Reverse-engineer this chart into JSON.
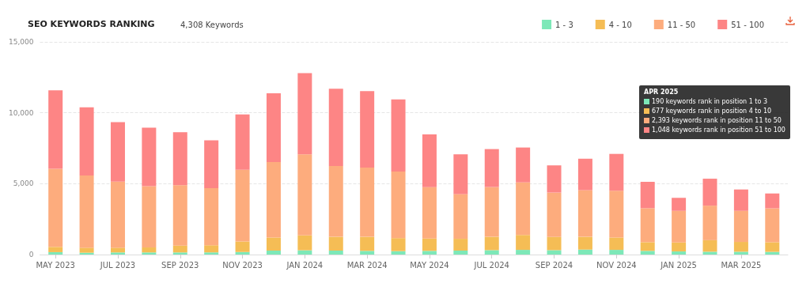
{
  "chart_data": {
    "type": "bar",
    "stacked": true,
    "title": "SEO KEYWORDS RANKING",
    "subtitle": "4,308 Keywords",
    "categories": [
      "MAY 2023",
      null,
      "JUL 2023",
      null,
      "SEP 2023",
      null,
      "NOV 2023",
      null,
      "JAN 2024",
      null,
      "MAR 2024",
      null,
      "MAY 2024",
      null,
      "JUL 2024",
      null,
      "SEP 2024",
      null,
      "NOV 2024",
      null,
      "JAN 2025",
      null,
      "MAR 2025",
      null
    ],
    "series": [
      {
        "name": "1 - 3",
        "color": "#7de8b8",
        "values": [
          170,
          130,
          150,
          150,
          150,
          150,
          180,
          280,
          300,
          280,
          260,
          240,
          260,
          280,
          310,
          330,
          310,
          350,
          330,
          260,
          220,
          200,
          200,
          190
        ]
      },
      {
        "name": "4 - 10",
        "color": "#f5bd55",
        "values": [
          370,
          350,
          330,
          350,
          480,
          500,
          740,
          920,
          1050,
          970,
          990,
          920,
          870,
          830,
          940,
          1050,
          930,
          900,
          870,
          610,
          630,
          810,
          690,
          677
        ]
      },
      {
        "name": "11 - 50",
        "color": "#fdac7d",
        "values": [
          5510,
          5090,
          4670,
          4330,
          4260,
          4040,
          5060,
          5330,
          5720,
          5000,
          4890,
          4690,
          3630,
          3150,
          3510,
          3710,
          3130,
          3290,
          3300,
          2400,
          2230,
          2440,
          2190,
          2393
        ]
      },
      {
        "name": "51 - 100",
        "color": "#fd8585",
        "values": [
          5540,
          4820,
          4190,
          4120,
          3740,
          3370,
          3910,
          4840,
          5730,
          5450,
          5390,
          5090,
          3710,
          2810,
          2680,
          2460,
          1920,
          2220,
          2600,
          1860,
          920,
          1900,
          1510,
          1048
        ]
      }
    ],
    "ylim": [
      0,
      15000
    ],
    "yticks": [
      {
        "value": 0,
        "label": "0"
      },
      {
        "value": 5000,
        "label": "5,000"
      },
      {
        "value": 10000,
        "label": "10,000"
      },
      {
        "value": 15000,
        "label": "15,000"
      }
    ],
    "grid": "y",
    "legend": "top right",
    "annotations": [
      "APR 2025",
      "190 keywords rank in position 1 to 3",
      "677 keywords rank in position 4 to 10",
      "2,393 keywords rank in position 11 to 50",
      "1,048 keywords rank in position 51 to 100"
    ]
  }
}
